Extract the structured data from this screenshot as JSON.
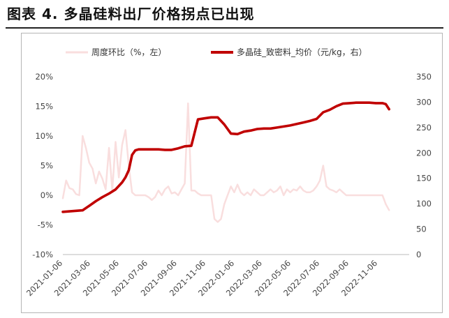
{
  "figure_title": "图表 4. 多晶硅料出厂价格拐点已出现",
  "colors": {
    "primary": "#c00000",
    "secondary": "#f9dede"
  },
  "chart_data": {
    "type": "line",
    "legend_position": "top",
    "grid": false,
    "x_ticks": [
      "2021-01-06",
      "2021-03-06",
      "2021-05-06",
      "2021-07-06",
      "2021-09-06",
      "2021-11-06",
      "2022-01-06",
      "2022-03-06",
      "2022-05-06",
      "2022-07-06",
      "2022-09-06",
      "2022-11-06"
    ],
    "y_left": {
      "ticks": [
        "-10%",
        "-5%",
        "0%",
        "5%",
        "10%",
        "15%",
        "20%"
      ],
      "range": [
        -10,
        20
      ]
    },
    "y_right": {
      "ticks": [
        "0",
        "50",
        "100",
        "150",
        "200",
        "250",
        "300",
        "350"
      ],
      "range": [
        0,
        350
      ]
    },
    "series": [
      {
        "name": "周度环比（%，左）",
        "axis": "left",
        "color": "#f9dede",
        "points": [
          [
            "2021-01-06",
            -0.5
          ],
          [
            "2021-01-13",
            2.5
          ],
          [
            "2021-01-20",
            1.2
          ],
          [
            "2021-01-27",
            1.0
          ],
          [
            "2021-02-03",
            0.2
          ],
          [
            "2021-02-10",
            0
          ],
          [
            "2021-02-17",
            10.0
          ],
          [
            "2021-02-24",
            8.0
          ],
          [
            "2021-03-03",
            5.5
          ],
          [
            "2021-03-10",
            4.5
          ],
          [
            "2021-03-17",
            2.0
          ],
          [
            "2021-03-24",
            4.0
          ],
          [
            "2021-03-31",
            2.8
          ],
          [
            "2021-04-07",
            1.0
          ],
          [
            "2021-04-14",
            8.0
          ],
          [
            "2021-04-21",
            0.8
          ],
          [
            "2021-04-28",
            9.0
          ],
          [
            "2021-05-05",
            3.0
          ],
          [
            "2021-05-12",
            8.5
          ],
          [
            "2021-05-19",
            11.0
          ],
          [
            "2021-05-26",
            5.0
          ],
          [
            "2021-06-02",
            0.5
          ],
          [
            "2021-06-09",
            0
          ],
          [
            "2021-06-16",
            0
          ],
          [
            "2021-06-23",
            0
          ],
          [
            "2021-06-30",
            0
          ],
          [
            "2021-07-07",
            -0.3
          ],
          [
            "2021-07-14",
            -0.8
          ],
          [
            "2021-07-21",
            -0.3
          ],
          [
            "2021-07-28",
            0.8
          ],
          [
            "2021-08-04",
            0
          ],
          [
            "2021-08-11",
            1.0
          ],
          [
            "2021-08-18",
            1.5
          ],
          [
            "2021-08-25",
            0.3
          ],
          [
            "2021-09-01",
            0.5
          ],
          [
            "2021-09-08",
            0
          ],
          [
            "2021-09-15",
            1.0
          ],
          [
            "2021-09-22",
            2.0
          ],
          [
            "2021-09-29",
            15.5
          ],
          [
            "2021-10-06",
            0.8
          ],
          [
            "2021-10-13",
            0.8
          ],
          [
            "2021-10-20",
            0.3
          ],
          [
            "2021-10-27",
            0
          ],
          [
            "2021-11-03",
            0
          ],
          [
            "2021-11-10",
            0
          ],
          [
            "2021-11-17",
            0
          ],
          [
            "2021-11-24",
            -4.0
          ],
          [
            "2021-12-01",
            -4.5
          ],
          [
            "2021-12-08",
            -4.0
          ],
          [
            "2021-12-15",
            -1.5
          ],
          [
            "2021-12-22",
            0
          ],
          [
            "2021-12-29",
            1.5
          ],
          [
            "2022-01-05",
            0.5
          ],
          [
            "2022-01-12",
            1.8
          ],
          [
            "2022-01-19",
            0.5
          ],
          [
            "2022-01-26",
            0
          ],
          [
            "2022-02-02",
            0.5
          ],
          [
            "2022-02-09",
            0
          ],
          [
            "2022-02-16",
            1.0
          ],
          [
            "2022-02-23",
            0.5
          ],
          [
            "2022-03-02",
            0
          ],
          [
            "2022-03-09",
            0
          ],
          [
            "2022-03-16",
            0.5
          ],
          [
            "2022-03-23",
            1.0
          ],
          [
            "2022-03-30",
            0.5
          ],
          [
            "2022-04-06",
            0.8
          ],
          [
            "2022-04-13",
            1.5
          ],
          [
            "2022-04-20",
            0
          ],
          [
            "2022-04-27",
            1.0
          ],
          [
            "2022-05-04",
            0.5
          ],
          [
            "2022-05-11",
            1.0
          ],
          [
            "2022-05-18",
            0.8
          ],
          [
            "2022-05-25",
            1.5
          ],
          [
            "2022-06-01",
            0.8
          ],
          [
            "2022-06-08",
            0.5
          ],
          [
            "2022-06-15",
            0.5
          ],
          [
            "2022-06-22",
            0.8
          ],
          [
            "2022-06-29",
            1.5
          ],
          [
            "2022-07-06",
            2.5
          ],
          [
            "2022-07-13",
            5.0
          ],
          [
            "2022-07-20",
            1.5
          ],
          [
            "2022-07-27",
            1.0
          ],
          [
            "2022-08-03",
            0.8
          ],
          [
            "2022-08-10",
            0.5
          ],
          [
            "2022-08-17",
            1.0
          ],
          [
            "2022-08-24",
            0.5
          ],
          [
            "2022-08-31",
            0
          ],
          [
            "2022-09-07",
            0
          ],
          [
            "2022-09-14",
            0
          ],
          [
            "2022-09-21",
            0
          ],
          [
            "2022-09-28",
            0
          ],
          [
            "2022-10-05",
            0
          ],
          [
            "2022-10-12",
            0
          ],
          [
            "2022-10-19",
            0
          ],
          [
            "2022-10-26",
            0
          ],
          [
            "2022-11-02",
            0
          ],
          [
            "2022-11-09",
            0
          ],
          [
            "2022-11-16",
            0
          ],
          [
            "2022-11-23",
            -1.5
          ],
          [
            "2022-11-30",
            -2.5
          ]
        ]
      },
      {
        "name": "多晶硅_致密料_均价（元/kg，右）",
        "axis": "right",
        "color": "#c00000",
        "points": [
          [
            "2021-01-06",
            84
          ],
          [
            "2021-01-20",
            85
          ],
          [
            "2021-02-03",
            86
          ],
          [
            "2021-02-17",
            87
          ],
          [
            "2021-03-03",
            96
          ],
          [
            "2021-03-17",
            105
          ],
          [
            "2021-03-31",
            113
          ],
          [
            "2021-04-14",
            120
          ],
          [
            "2021-04-28",
            128
          ],
          [
            "2021-05-12",
            142
          ],
          [
            "2021-05-19",
            152
          ],
          [
            "2021-05-26",
            166
          ],
          [
            "2021-06-02",
            196
          ],
          [
            "2021-06-09",
            205
          ],
          [
            "2021-06-16",
            207
          ],
          [
            "2021-06-30",
            207
          ],
          [
            "2021-07-14",
            207
          ],
          [
            "2021-07-28",
            207
          ],
          [
            "2021-08-11",
            206
          ],
          [
            "2021-08-25",
            206
          ],
          [
            "2021-09-08",
            209
          ],
          [
            "2021-09-22",
            213
          ],
          [
            "2021-10-06",
            214
          ],
          [
            "2021-10-20",
            266
          ],
          [
            "2021-11-03",
            268
          ],
          [
            "2021-11-17",
            270
          ],
          [
            "2021-12-01",
            270
          ],
          [
            "2021-12-15",
            256
          ],
          [
            "2021-12-29",
            238
          ],
          [
            "2022-01-12",
            237
          ],
          [
            "2022-01-26",
            242
          ],
          [
            "2022-02-09",
            244
          ],
          [
            "2022-02-23",
            247
          ],
          [
            "2022-03-09",
            248
          ],
          [
            "2022-03-23",
            248
          ],
          [
            "2022-04-06",
            250
          ],
          [
            "2022-04-20",
            252
          ],
          [
            "2022-05-04",
            254
          ],
          [
            "2022-05-18",
            257
          ],
          [
            "2022-06-01",
            260
          ],
          [
            "2022-06-15",
            263
          ],
          [
            "2022-06-29",
            267
          ],
          [
            "2022-07-13",
            280
          ],
          [
            "2022-07-27",
            285
          ],
          [
            "2022-08-10",
            292
          ],
          [
            "2022-08-24",
            297
          ],
          [
            "2022-09-07",
            298
          ],
          [
            "2022-09-21",
            299
          ],
          [
            "2022-10-05",
            299
          ],
          [
            "2022-10-19",
            299
          ],
          [
            "2022-11-02",
            298
          ],
          [
            "2022-11-16",
            298
          ],
          [
            "2022-11-23",
            296
          ],
          [
            "2022-11-30",
            286
          ]
        ]
      }
    ]
  }
}
